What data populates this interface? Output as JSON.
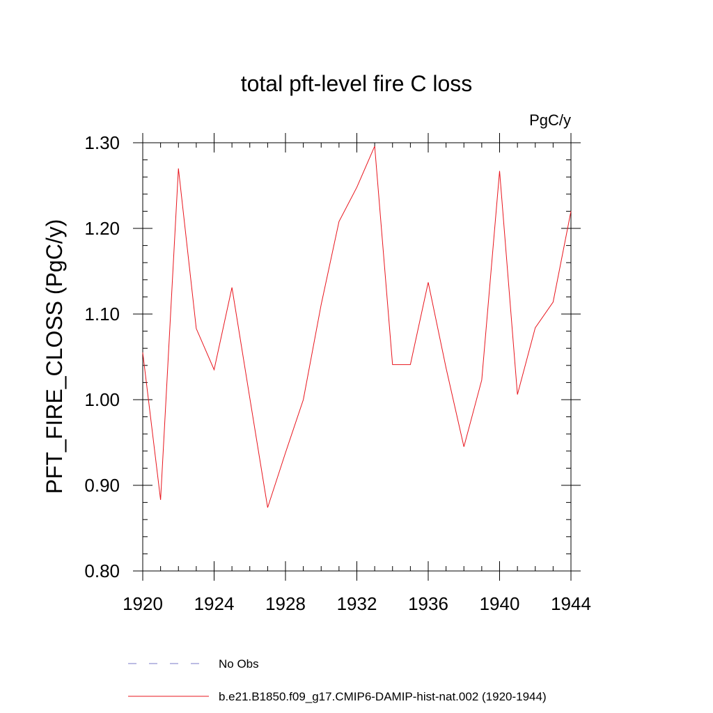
{
  "chart_data": {
    "type": "line",
    "title": "total pft-level fire C loss",
    "units": "PgC/y",
    "ylabel": "PFT_FIRE_CLOSS  (PgC/y)",
    "xlabel": "",
    "xlim": [
      1920,
      1944
    ],
    "ylim": [
      0.8,
      1.3
    ],
    "x_ticks": [
      1920,
      1924,
      1928,
      1932,
      1936,
      1940,
      1944
    ],
    "y_ticks": [
      0.8,
      0.9,
      1.0,
      1.1,
      1.2,
      1.3
    ],
    "y_tick_labels": [
      "0.80",
      "0.90",
      "1.00",
      "1.10",
      "1.20",
      "1.30"
    ],
    "grid": false,
    "legend_position": "bottom",
    "series": [
      {
        "name": "b.e21.B1850.f09_g17.CMIP6-DAMIP-hist-nat.002 (1920-1944)",
        "color": "#e8141c",
        "style": "solid",
        "x": [
          1920,
          1921,
          1922,
          1923,
          1924,
          1925,
          1926,
          1927,
          1928,
          1929,
          1930,
          1931,
          1932,
          1933,
          1934,
          1935,
          1936,
          1937,
          1938,
          1939,
          1940,
          1941,
          1942,
          1943,
          1944
        ],
        "y": [
          1.055,
          0.883,
          1.27,
          1.083,
          1.035,
          1.131,
          1.002,
          0.874,
          0.938,
          1.0,
          1.111,
          1.208,
          1.248,
          1.296,
          1.041,
          1.041,
          1.137,
          1.037,
          0.945,
          1.023,
          1.267,
          1.006,
          1.084,
          1.114,
          1.22
        ]
      }
    ],
    "legend": [
      {
        "label": "No Obs",
        "color": "#7a78c8",
        "style": "dashed"
      },
      {
        "label": "b.e21.B1850.f09_g17.CMIP6-DAMIP-hist-nat.002 (1920-1944)",
        "color": "#e8141c",
        "style": "solid"
      }
    ]
  }
}
